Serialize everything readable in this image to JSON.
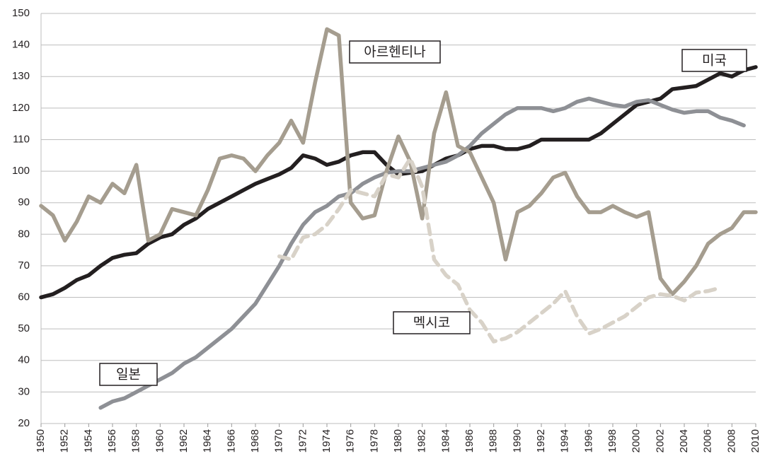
{
  "chart_data": {
    "type": "line",
    "x": [
      1950,
      1951,
      1952,
      1953,
      1954,
      1955,
      1956,
      1957,
      1958,
      1959,
      1960,
      1961,
      1962,
      1963,
      1964,
      1965,
      1966,
      1967,
      1968,
      1969,
      1970,
      1971,
      1972,
      1973,
      1974,
      1975,
      1976,
      1977,
      1978,
      1979,
      1980,
      1981,
      1982,
      1983,
      1984,
      1985,
      1986,
      1987,
      1988,
      1989,
      1990,
      1991,
      1992,
      1993,
      1994,
      1995,
      1996,
      1997,
      1998,
      1999,
      2000,
      2001,
      2002,
      2003,
      2004,
      2005,
      2006,
      2007,
      2008,
      2009,
      2010
    ],
    "series": [
      {
        "name": "미국",
        "color": "#231f20",
        "dashed": false,
        "values": [
          60,
          61,
          63,
          65.5,
          67,
          70,
          72.5,
          73.5,
          74,
          77,
          79,
          80,
          83,
          85,
          88,
          90,
          92,
          94,
          96,
          97.5,
          99,
          101,
          105,
          104,
          102,
          103,
          105,
          106,
          106,
          102,
          99,
          99.5,
          100,
          102,
          104,
          105,
          107,
          108,
          108,
          107,
          107,
          108,
          110,
          110,
          110,
          110,
          110,
          112,
          115,
          118,
          121,
          122,
          123,
          126,
          126.5,
          127,
          129,
          131,
          130,
          132,
          133
        ]
      },
      {
        "name": "일본",
        "color": "#8e9095",
        "dashed": false,
        "values": [
          null,
          null,
          null,
          null,
          null,
          25,
          27,
          28,
          30,
          32,
          34,
          36,
          39,
          41,
          44,
          47,
          50,
          54,
          58,
          64,
          70,
          77,
          83,
          87,
          89,
          92,
          93,
          96,
          98,
          99.5,
          100,
          100,
          101,
          102,
          103,
          105,
          108,
          112,
          115,
          118,
          120,
          120,
          120,
          119,
          120,
          122,
          123,
          122,
          121,
          120.5,
          122,
          122.5,
          121,
          119.5,
          118.5,
          119,
          119,
          117,
          116,
          114.5,
          null
        ]
      },
      {
        "name": "아르헨티나",
        "color": "#a59d8f",
        "dashed": false,
        "values": [
          89,
          86,
          78,
          84,
          92,
          90,
          96,
          93,
          102,
          78,
          80,
          88,
          87,
          86,
          94,
          104,
          105,
          104,
          100,
          105,
          109,
          116,
          109,
          128,
          145,
          143,
          90,
          85,
          86,
          100,
          111,
          103,
          85,
          112,
          125,
          108,
          106,
          98,
          90,
          72,
          87,
          89,
          93,
          98,
          99.5,
          92,
          87,
          87,
          89,
          87,
          85.5,
          87,
          66,
          61,
          65,
          70,
          77,
          80,
          82,
          87,
          87
        ]
      },
      {
        "name": "멕시코",
        "color": "#d8d2c8",
        "dashed": true,
        "values": [
          null,
          null,
          null,
          null,
          null,
          null,
          null,
          null,
          null,
          null,
          null,
          null,
          null,
          null,
          null,
          null,
          null,
          null,
          null,
          null,
          73,
          72,
          79,
          80,
          83,
          88,
          94,
          93,
          92,
          99,
          98,
          104,
          95,
          72,
          67,
          64,
          56,
          52,
          46,
          47,
          49,
          52,
          55,
          58,
          62,
          54,
          48.5,
          50,
          52,
          54,
          57,
          60,
          61,
          60.5,
          59,
          61.5,
          62,
          63,
          null,
          null,
          null
        ]
      }
    ],
    "xlim": [
      1950,
      2010
    ],
    "xticks": [
      1950,
      1952,
      1954,
      1956,
      1958,
      1960,
      1962,
      1964,
      1966,
      1968,
      1970,
      1972,
      1974,
      1976,
      1978,
      1980,
      1982,
      1984,
      1986,
      1988,
      1990,
      1992,
      1994,
      1996,
      1998,
      2000,
      2002,
      2004,
      2006,
      2008,
      2010
    ],
    "ylim": [
      20,
      150
    ],
    "yticks": [
      20,
      30,
      40,
      50,
      60,
      70,
      80,
      90,
      100,
      110,
      120,
      130,
      140,
      150
    ],
    "grid": true
  }
}
